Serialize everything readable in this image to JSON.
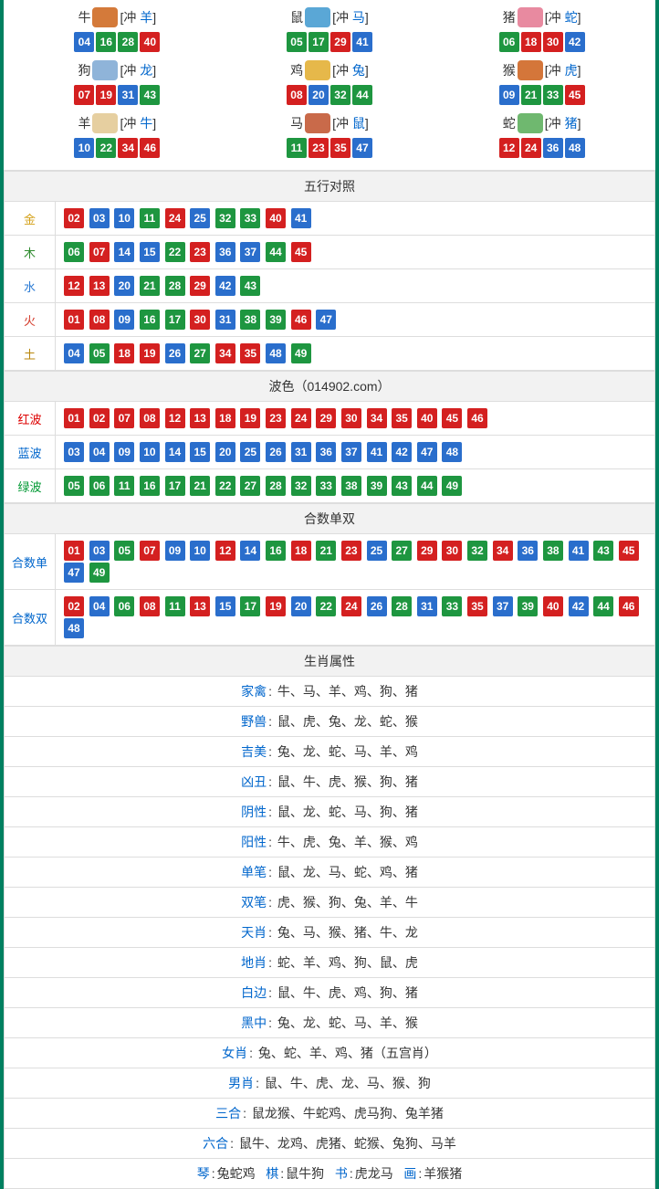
{
  "colors": {
    "red": "#d42020",
    "blue": "#2a6ecc",
    "green": "#1e9640",
    "border": "#dddddd",
    "outer": "#008060",
    "header_bg": "#f2f2f2",
    "link": "#0066cc"
  },
  "ball_color_map": {
    "01": "red",
    "02": "red",
    "07": "red",
    "08": "red",
    "12": "red",
    "13": "red",
    "18": "red",
    "19": "red",
    "23": "red",
    "24": "red",
    "29": "red",
    "30": "red",
    "34": "red",
    "35": "red",
    "40": "red",
    "45": "red",
    "46": "red",
    "03": "blue",
    "04": "blue",
    "09": "blue",
    "10": "blue",
    "14": "blue",
    "15": "blue",
    "20": "blue",
    "25": "blue",
    "26": "blue",
    "31": "blue",
    "36": "blue",
    "37": "blue",
    "41": "blue",
    "42": "blue",
    "47": "blue",
    "48": "blue",
    "05": "green",
    "06": "green",
    "11": "green",
    "16": "green",
    "17": "green",
    "21": "green",
    "22": "green",
    "27": "green",
    "28": "green",
    "32": "green",
    "33": "green",
    "38": "green",
    "39": "green",
    "43": "green",
    "44": "green",
    "49": "green"
  },
  "zodiac_icon_colors": {
    "牛": "#d47a3a",
    "鼠": "#5aa7d6",
    "猪": "#e88aa0",
    "狗": "#8fb4d9",
    "鸡": "#e6b84a",
    "猴": "#d4763a",
    "羊": "#e6cfa0",
    "马": "#c96a4a",
    "蛇": "#6fb86f"
  },
  "zodiacs": [
    {
      "name": "牛",
      "clash": "羊",
      "nums": [
        "04",
        "16",
        "28",
        "40"
      ]
    },
    {
      "name": "鼠",
      "clash": "马",
      "nums": [
        "05",
        "17",
        "29",
        "41"
      ]
    },
    {
      "name": "猪",
      "clash": "蛇",
      "nums": [
        "06",
        "18",
        "30",
        "42"
      ]
    },
    {
      "name": "狗",
      "clash": "龙",
      "nums": [
        "07",
        "19",
        "31",
        "43"
      ]
    },
    {
      "name": "鸡",
      "clash": "兔",
      "nums": [
        "08",
        "20",
        "32",
        "44"
      ]
    },
    {
      "name": "猴",
      "clash": "虎",
      "nums": [
        "09",
        "21",
        "33",
        "45"
      ]
    },
    {
      "name": "羊",
      "clash": "牛",
      "nums": [
        "10",
        "22",
        "34",
        "46"
      ]
    },
    {
      "name": "马",
      "clash": "鼠",
      "nums": [
        "11",
        "23",
        "35",
        "47"
      ]
    },
    {
      "name": "蛇",
      "clash": "猪",
      "nums": [
        "12",
        "24",
        "36",
        "48"
      ]
    }
  ],
  "sections": {
    "wuxing": {
      "title": "五行对照",
      "rows": [
        {
          "label": "金",
          "class": "gold",
          "nums": [
            "02",
            "03",
            "10",
            "11",
            "24",
            "25",
            "32",
            "33",
            "40",
            "41"
          ]
        },
        {
          "label": "木",
          "class": "wood",
          "nums": [
            "06",
            "07",
            "14",
            "15",
            "22",
            "23",
            "36",
            "37",
            "44",
            "45"
          ]
        },
        {
          "label": "水",
          "class": "water",
          "nums": [
            "12",
            "13",
            "20",
            "21",
            "28",
            "29",
            "42",
            "43"
          ]
        },
        {
          "label": "火",
          "class": "fire",
          "nums": [
            "01",
            "08",
            "09",
            "16",
            "17",
            "30",
            "31",
            "38",
            "39",
            "46",
            "47"
          ]
        },
        {
          "label": "土",
          "class": "earth",
          "nums": [
            "04",
            "05",
            "18",
            "19",
            "26",
            "27",
            "34",
            "35",
            "48",
            "49"
          ]
        }
      ]
    },
    "bose": {
      "title": "波色（014902.com）",
      "rows": [
        {
          "label": "红波",
          "class": "red-t",
          "nums": [
            "01",
            "02",
            "07",
            "08",
            "12",
            "13",
            "18",
            "19",
            "23",
            "24",
            "29",
            "30",
            "34",
            "35",
            "40",
            "45",
            "46"
          ]
        },
        {
          "label": "蓝波",
          "class": "blue-t",
          "nums": [
            "03",
            "04",
            "09",
            "10",
            "14",
            "15",
            "20",
            "25",
            "26",
            "31",
            "36",
            "37",
            "41",
            "42",
            "47",
            "48"
          ]
        },
        {
          "label": "绿波",
          "class": "green-t",
          "nums": [
            "05",
            "06",
            "11",
            "16",
            "17",
            "21",
            "22",
            "27",
            "28",
            "32",
            "33",
            "38",
            "39",
            "43",
            "44",
            "49"
          ]
        }
      ]
    },
    "heshu": {
      "title": "合数单双",
      "rows": [
        {
          "label": "合数单",
          "class": "blue-t",
          "nums": [
            "01",
            "03",
            "05",
            "07",
            "09",
            "10",
            "12",
            "14",
            "16",
            "18",
            "21",
            "23",
            "25",
            "27",
            "29",
            "30",
            "32",
            "34",
            "36",
            "38",
            "41",
            "43",
            "45",
            "47",
            "49"
          ]
        },
        {
          "label": "合数双",
          "class": "blue-t",
          "nums": [
            "02",
            "04",
            "06",
            "08",
            "11",
            "13",
            "15",
            "17",
            "19",
            "20",
            "22",
            "24",
            "26",
            "28",
            "31",
            "33",
            "35",
            "37",
            "39",
            "40",
            "42",
            "44",
            "46",
            "48"
          ]
        }
      ]
    },
    "shengxiao": {
      "title": "生肖属性",
      "rows": [
        {
          "label": "家禽",
          "text": "牛、马、羊、鸡、狗、猪"
        },
        {
          "label": "野兽",
          "text": "鼠、虎、兔、龙、蛇、猴"
        },
        {
          "label": "吉美",
          "text": "兔、龙、蛇、马、羊、鸡"
        },
        {
          "label": "凶丑",
          "text": "鼠、牛、虎、猴、狗、猪"
        },
        {
          "label": "阴性",
          "text": "鼠、龙、蛇、马、狗、猪"
        },
        {
          "label": "阳性",
          "text": "牛、虎、兔、羊、猴、鸡"
        },
        {
          "label": "单笔",
          "text": "鼠、龙、马、蛇、鸡、猪"
        },
        {
          "label": "双笔",
          "text": "虎、猴、狗、兔、羊、牛"
        },
        {
          "label": "天肖",
          "text": "兔、马、猴、猪、牛、龙"
        },
        {
          "label": "地肖",
          "text": "蛇、羊、鸡、狗、鼠、虎"
        },
        {
          "label": "白边",
          "text": "鼠、牛、虎、鸡、狗、猪"
        },
        {
          "label": "黑中",
          "text": "兔、龙、蛇、马、羊、猴"
        },
        {
          "label": "女肖",
          "text": "兔、蛇、羊、鸡、猪（五宫肖）"
        },
        {
          "label": "男肖",
          "text": "鼠、牛、虎、龙、马、猴、狗"
        },
        {
          "label": "三合",
          "text": "鼠龙猴、牛蛇鸡、虎马狗、兔羊猪"
        },
        {
          "label": "六合",
          "text": "鼠牛、龙鸡、虎猪、蛇猴、兔狗、马羊"
        }
      ],
      "four_arts": [
        {
          "label": "琴",
          "text": "兔蛇鸡"
        },
        {
          "label": "棋",
          "text": "鼠牛狗"
        },
        {
          "label": "书",
          "text": "虎龙马"
        },
        {
          "label": "画",
          "text": "羊猴猪"
        }
      ]
    }
  }
}
